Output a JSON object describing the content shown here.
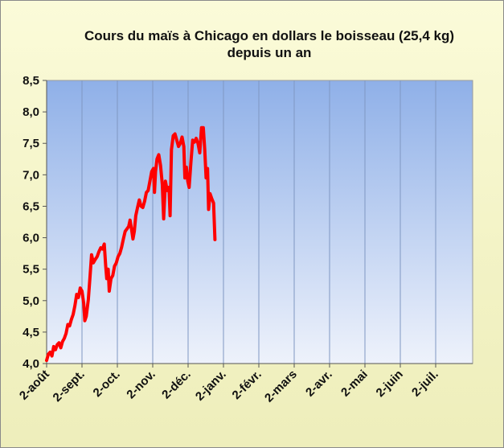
{
  "chart_data": {
    "type": "line",
    "title_line1": "Cours du maïs à Chicago en dollars le boisseau (25,4 kg)",
    "title_line2": "depuis un an",
    "xlabel": "",
    "ylabel": "",
    "ylim": [
      4.0,
      8.5
    ],
    "yticks": [
      "4,0",
      "4,5",
      "5,0",
      "5,5",
      "6,0",
      "6,5",
      "7,0",
      "7,5",
      "8,0",
      "8,5"
    ],
    "xticks": [
      "2-août",
      "2-sept.",
      "2-oct.",
      "2-nov.",
      "2-déc.",
      "2-janv.",
      "2-févr.",
      "2-mars",
      "2-avr.",
      "2-mai",
      "2-juin",
      "2-juil."
    ],
    "grid": "vertical",
    "line_color": "#ff0000",
    "series": [
      {
        "values": [
          [
            0.0,
            4.05
          ],
          [
            0.05,
            4.15
          ],
          [
            0.1,
            4.18
          ],
          [
            0.15,
            4.12
          ],
          [
            0.2,
            4.27
          ],
          [
            0.25,
            4.22
          ],
          [
            0.3,
            4.3
          ],
          [
            0.35,
            4.33
          ],
          [
            0.4,
            4.25
          ],
          [
            0.45,
            4.35
          ],
          [
            0.5,
            4.4
          ],
          [
            0.55,
            4.48
          ],
          [
            0.6,
            4.62
          ],
          [
            0.65,
            4.6
          ],
          [
            0.7,
            4.7
          ],
          [
            0.75,
            4.78
          ],
          [
            0.8,
            4.92
          ],
          [
            0.85,
            5.1
          ],
          [
            0.9,
            5.05
          ],
          [
            0.95,
            5.2
          ],
          [
            1.0,
            5.15
          ],
          [
            1.05,
            4.95
          ],
          [
            1.08,
            4.68
          ],
          [
            1.12,
            4.75
          ],
          [
            1.18,
            5.02
          ],
          [
            1.23,
            5.4
          ],
          [
            1.27,
            5.73
          ],
          [
            1.32,
            5.6
          ],
          [
            1.37,
            5.65
          ],
          [
            1.43,
            5.7
          ],
          [
            1.48,
            5.78
          ],
          [
            1.53,
            5.84
          ],
          [
            1.58,
            5.82
          ],
          [
            1.63,
            5.9
          ],
          [
            1.67,
            5.55
          ],
          [
            1.7,
            5.35
          ],
          [
            1.74,
            5.5
          ],
          [
            1.77,
            5.15
          ],
          [
            1.82,
            5.35
          ],
          [
            1.87,
            5.4
          ],
          [
            1.92,
            5.55
          ],
          [
            1.97,
            5.6
          ],
          [
            2.02,
            5.7
          ],
          [
            2.07,
            5.75
          ],
          [
            2.12,
            5.85
          ],
          [
            2.17,
            5.98
          ],
          [
            2.22,
            6.1
          ],
          [
            2.27,
            6.14
          ],
          [
            2.32,
            6.18
          ],
          [
            2.36,
            6.28
          ],
          [
            2.4,
            6.14
          ],
          [
            2.44,
            5.98
          ],
          [
            2.48,
            6.1
          ],
          [
            2.52,
            6.35
          ],
          [
            2.57,
            6.48
          ],
          [
            2.62,
            6.6
          ],
          [
            2.67,
            6.5
          ],
          [
            2.72,
            6.48
          ],
          [
            2.77,
            6.58
          ],
          [
            2.82,
            6.72
          ],
          [
            2.87,
            6.75
          ],
          [
            2.92,
            6.9
          ],
          [
            2.97,
            7.05
          ],
          [
            3.02,
            7.1
          ],
          [
            3.05,
            6.72
          ],
          [
            3.08,
            7.05
          ],
          [
            3.12,
            7.25
          ],
          [
            3.17,
            7.32
          ],
          [
            3.22,
            7.15
          ],
          [
            3.27,
            6.85
          ],
          [
            3.31,
            6.3
          ],
          [
            3.36,
            6.9
          ],
          [
            3.41,
            6.75
          ],
          [
            3.46,
            6.8
          ],
          [
            3.49,
            6.35
          ],
          [
            3.53,
            7.4
          ],
          [
            3.58,
            7.62
          ],
          [
            3.63,
            7.65
          ],
          [
            3.68,
            7.55
          ],
          [
            3.73,
            7.45
          ],
          [
            3.78,
            7.5
          ],
          [
            3.83,
            7.6
          ],
          [
            3.88,
            7.45
          ],
          [
            3.91,
            6.95
          ],
          [
            3.95,
            7.12
          ],
          [
            3.99,
            6.9
          ],
          [
            4.03,
            6.8
          ],
          [
            4.08,
            7.2
          ],
          [
            4.13,
            7.55
          ],
          [
            4.18,
            7.52
          ],
          [
            4.23,
            7.58
          ],
          [
            4.28,
            7.5
          ],
          [
            4.33,
            7.35
          ],
          [
            4.38,
            7.75
          ],
          [
            4.43,
            7.75
          ],
          [
            4.47,
            7.4
          ],
          [
            4.51,
            6.95
          ],
          [
            4.55,
            7.1
          ],
          [
            4.58,
            6.45
          ],
          [
            4.62,
            6.7
          ],
          [
            4.67,
            6.62
          ],
          [
            4.72,
            6.55
          ],
          [
            4.76,
            5.97
          ]
        ]
      }
    ]
  }
}
